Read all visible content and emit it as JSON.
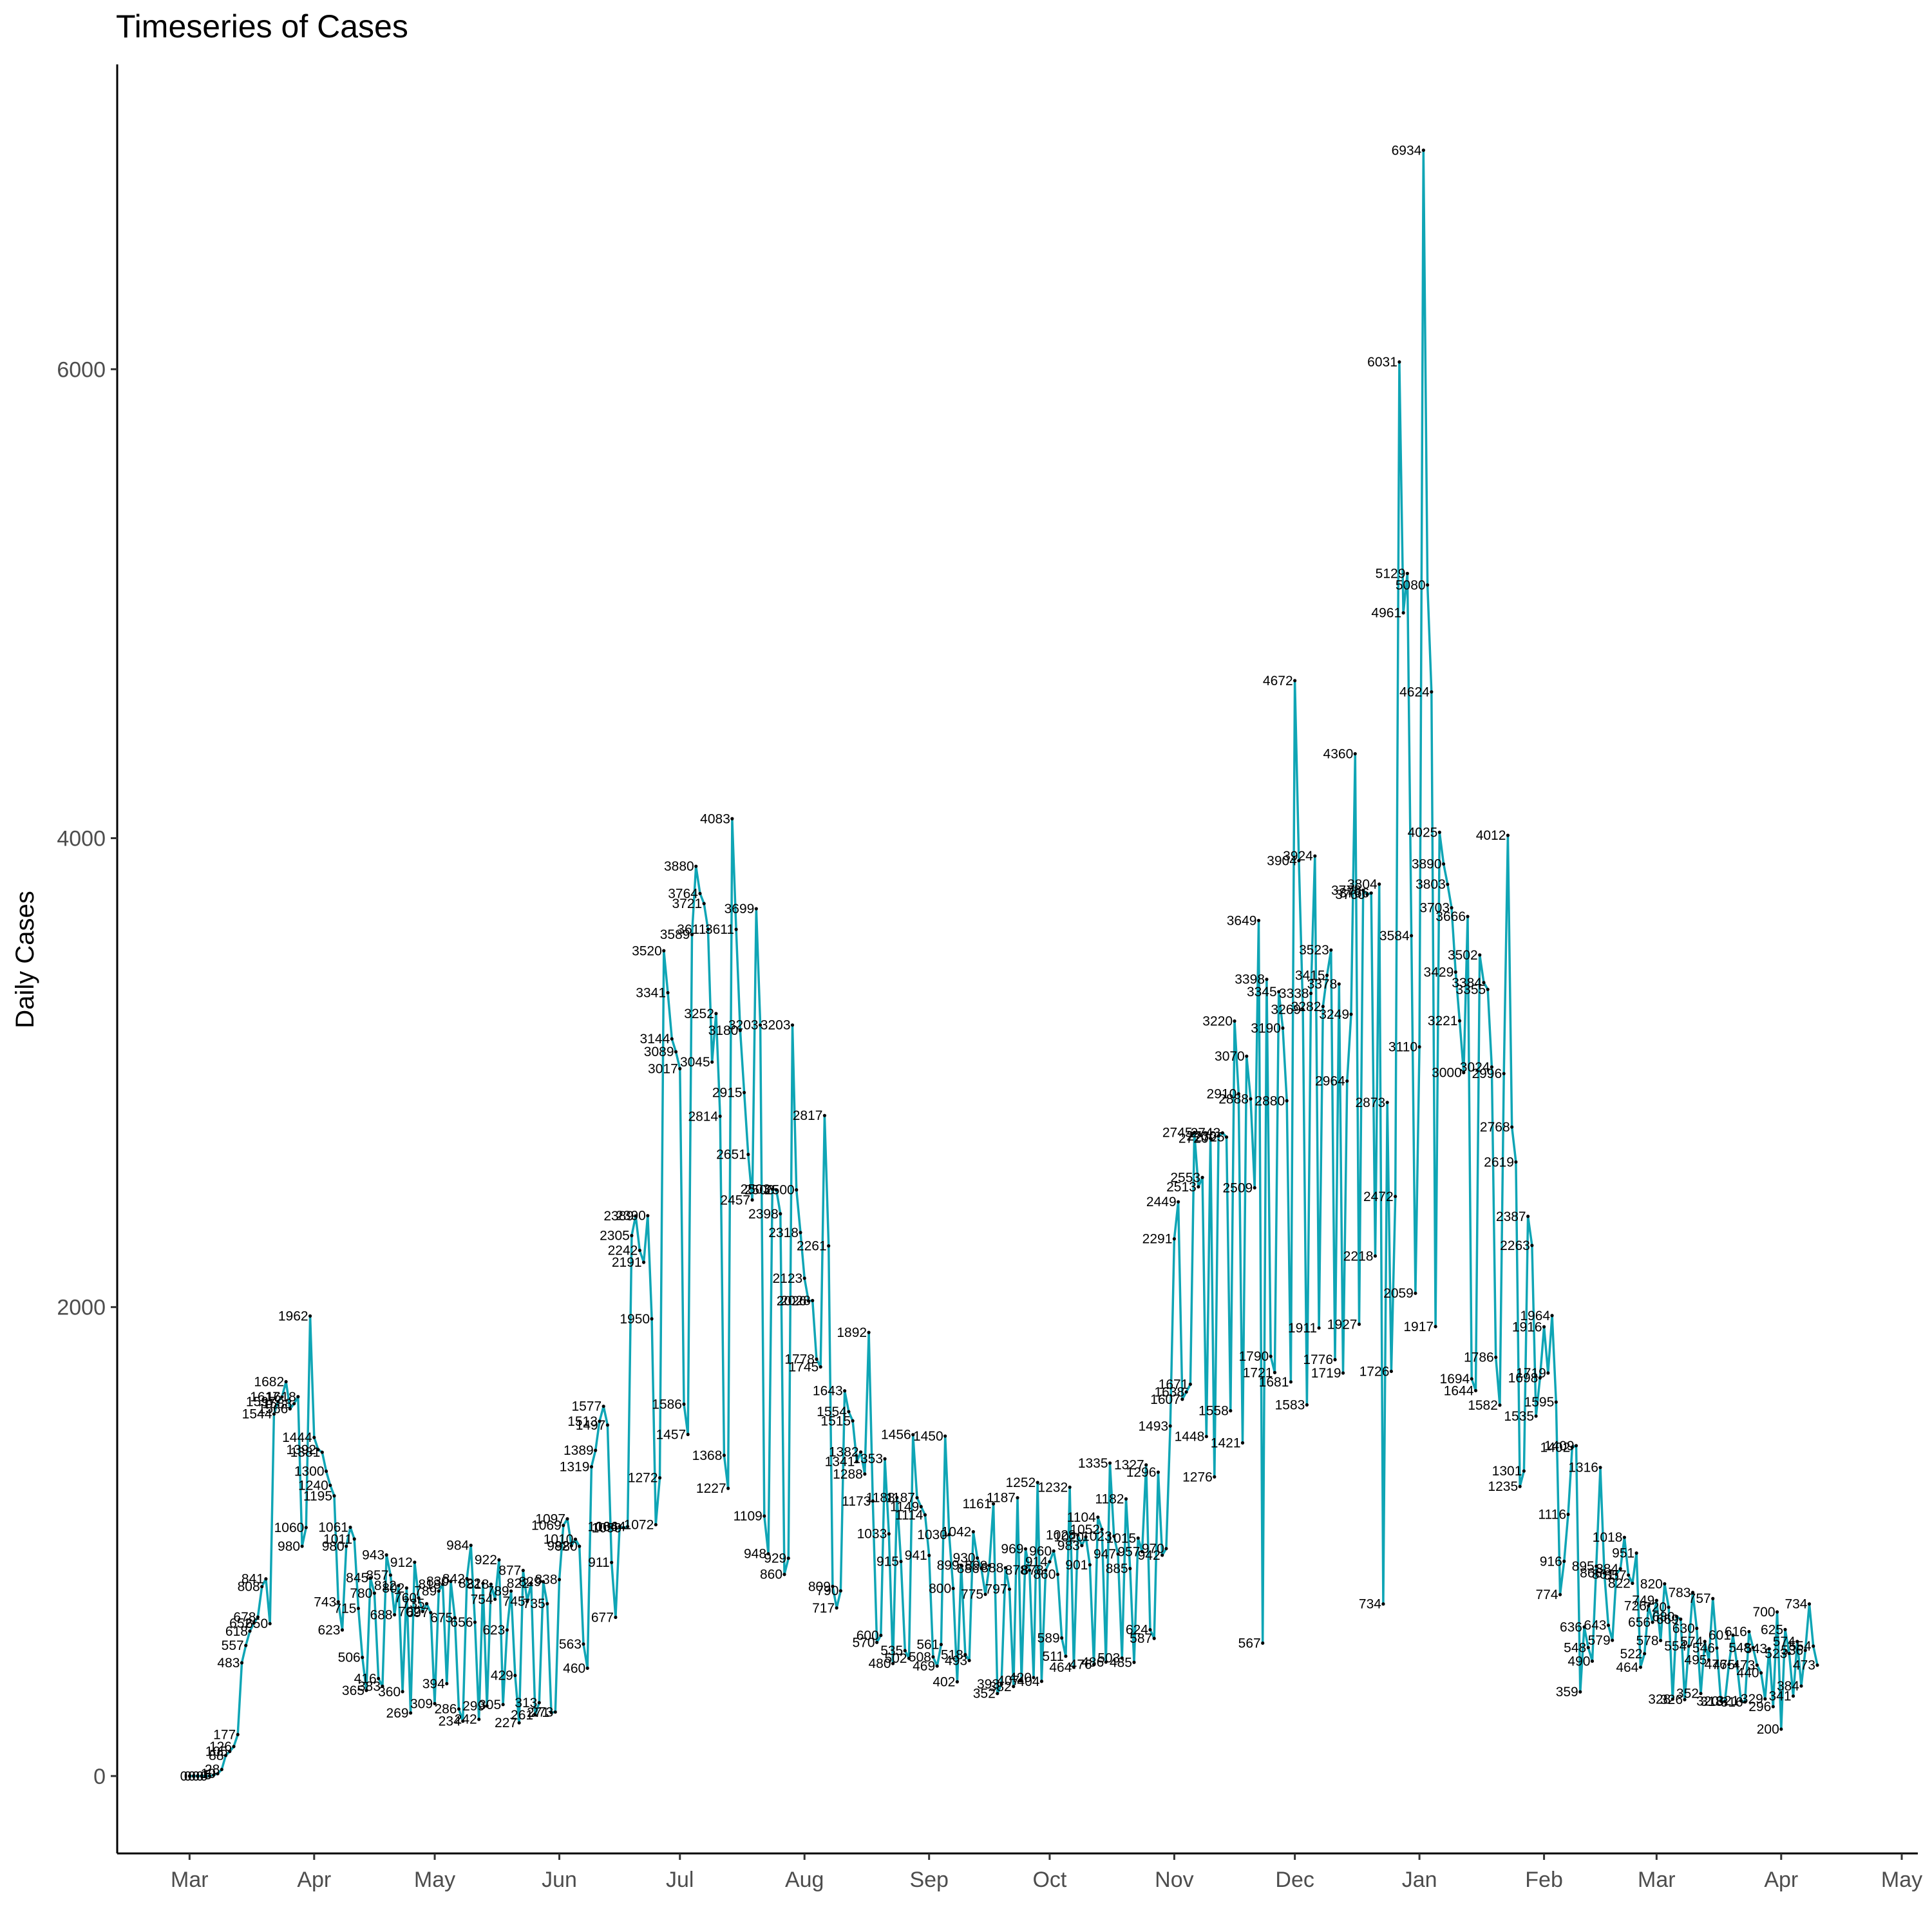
{
  "chart_data": {
    "type": "line",
    "title": "Timeseries of Cases",
    "xlabel": "",
    "ylabel": "Daily Cases",
    "color": "#0FA5B5",
    "label_color": "#000000",
    "y_ticks": [
      0,
      2000,
      4000,
      6000
    ],
    "ylim": [
      -330,
      7300
    ],
    "x_ticks": [
      "Mar",
      "Apr",
      "May",
      "Jun",
      "Jul",
      "Aug",
      "Sep",
      "Oct",
      "Nov",
      "Dec",
      "Jan",
      "Feb",
      "Mar",
      "Apr",
      "May"
    ],
    "x_tick_days": [
      0,
      31,
      61,
      92,
      122,
      153,
      184,
      214,
      245,
      275,
      306,
      337,
      365,
      396,
      426
    ],
    "xlim": [
      -18,
      430
    ],
    "points": [
      [
        0,
        0
      ],
      [
        1,
        0
      ],
      [
        2,
        0
      ],
      [
        3,
        0
      ],
      [
        4,
        0
      ],
      [
        5,
        0
      ],
      [
        6,
        5
      ],
      [
        7,
        10
      ],
      [
        8,
        28
      ],
      [
        9,
        88
      ],
      [
        10,
        105
      ],
      [
        11,
        126
      ],
      [
        12,
        177
      ],
      [
        13,
        483
      ],
      [
        14,
        557
      ],
      [
        15,
        618
      ],
      [
        16,
        652
      ],
      [
        17,
        678
      ],
      [
        18,
        808
      ],
      [
        19,
        841
      ],
      [
        20,
        650
      ],
      [
        21,
        1544
      ],
      [
        22,
        1597
      ],
      [
        23,
        1617
      ],
      [
        24,
        1682
      ],
      [
        25,
        1566
      ],
      [
        26,
        1588
      ],
      [
        27,
        1618
      ],
      [
        28,
        980
      ],
      [
        29,
        1060
      ],
      [
        30,
        1962
      ],
      [
        31,
        1444
      ],
      [
        32,
        1392
      ],
      [
        33,
        1381
      ],
      [
        34,
        1300
      ],
      [
        35,
        1240
      ],
      [
        36,
        1195
      ],
      [
        37,
        743
      ],
      [
        38,
        623
      ],
      [
        39,
        980
      ],
      [
        40,
        1061
      ],
      [
        41,
        1011
      ],
      [
        42,
        715
      ],
      [
        43,
        506
      ],
      [
        44,
        365
      ],
      [
        45,
        845
      ],
      [
        46,
        780
      ],
      [
        47,
        416
      ],
      [
        48,
        383
      ],
      [
        49,
        943
      ],
      [
        50,
        857
      ],
      [
        51,
        688
      ],
      [
        52,
        812
      ],
      [
        53,
        360
      ],
      [
        54,
        802
      ],
      [
        55,
        269
      ],
      [
        56,
        912
      ],
      [
        57,
        760
      ],
      [
        58,
        702
      ],
      [
        59,
        735
      ],
      [
        60,
        697
      ],
      [
        61,
        309
      ],
      [
        62,
        789
      ],
      [
        63,
        818
      ],
      [
        64,
        394
      ],
      [
        65,
        830
      ],
      [
        66,
        675
      ],
      [
        67,
        286
      ],
      [
        68,
        234
      ],
      [
        69,
        842
      ],
      [
        70,
        984
      ],
      [
        71,
        656
      ],
      [
        72,
        242
      ],
      [
        73,
        822
      ],
      [
        74,
        299
      ],
      [
        75,
        818
      ],
      [
        76,
        754
      ],
      [
        77,
        922
      ],
      [
        78,
        305
      ],
      [
        79,
        623
      ],
      [
        80,
        789
      ],
      [
        81,
        429
      ],
      [
        82,
        227
      ],
      [
        83,
        877
      ],
      [
        84,
        745
      ],
      [
        85,
        822
      ],
      [
        86,
        261
      ],
      [
        87,
        313
      ],
      [
        88,
        829
      ],
      [
        89,
        735
      ],
      [
        90,
        271
      ],
      [
        91,
        273
      ],
      [
        92,
        838
      ],
      [
        93,
        1069
      ],
      [
        94,
        1097
      ],
      [
        95,
        982
      ],
      [
        96,
        1010
      ],
      [
        97,
        980
      ],
      [
        98,
        563
      ],
      [
        99,
        460
      ],
      [
        100,
        1319
      ],
      [
        101,
        1389
      ],
      [
        102,
        1513
      ],
      [
        103,
        1577
      ],
      [
        104,
        1497
      ],
      [
        105,
        911
      ],
      [
        106,
        677
      ],
      [
        107,
        1064
      ],
      [
        108,
        1059
      ],
      [
        109,
        1064
      ],
      [
        110,
        2305
      ],
      [
        111,
        2389
      ],
      [
        112,
        2242
      ],
      [
        113,
        2191
      ],
      [
        114,
        2390
      ],
      [
        115,
        1950
      ],
      [
        116,
        1072
      ],
      [
        117,
        1272
      ],
      [
        118,
        3520
      ],
      [
        119,
        3341
      ],
      [
        120,
        3144
      ],
      [
        121,
        3089
      ],
      [
        122,
        3017
      ],
      [
        123,
        1586
      ],
      [
        124,
        1457
      ],
      [
        125,
        3589
      ],
      [
        126,
        3880
      ],
      [
        127,
        3764
      ],
      [
        128,
        3721
      ],
      [
        129,
        3611
      ],
      [
        130,
        3045
      ],
      [
        131,
        3252
      ],
      [
        132,
        2814
      ],
      [
        133,
        1368
      ],
      [
        134,
        1227
      ],
      [
        135,
        4083
      ],
      [
        136,
        3611
      ],
      [
        137,
        3180
      ],
      [
        138,
        2915
      ],
      [
        139,
        2651
      ],
      [
        140,
        2457
      ],
      [
        141,
        3699
      ],
      [
        142,
        3203
      ],
      [
        143,
        1109
      ],
      [
        144,
        948
      ],
      [
        145,
        2503
      ],
      [
        146,
        2500
      ],
      [
        147,
        2398
      ],
      [
        148,
        860
      ],
      [
        149,
        929
      ],
      [
        150,
        3203
      ],
      [
        151,
        2500
      ],
      [
        152,
        2318
      ],
      [
        153,
        2123
      ],
      [
        154,
        2026
      ],
      [
        155,
        2028
      ],
      [
        156,
        1778
      ],
      [
        157,
        1745
      ],
      [
        158,
        2817
      ],
      [
        159,
        2261
      ],
      [
        160,
        809
      ],
      [
        161,
        717
      ],
      [
        162,
        790
      ],
      [
        163,
        1643
      ],
      [
        164,
        1554
      ],
      [
        165,
        1515
      ],
      [
        166,
        1341
      ],
      [
        167,
        1382
      ],
      [
        168,
        1288
      ],
      [
        169,
        1892
      ],
      [
        170,
        1173
      ],
      [
        171,
        570
      ],
      [
        172,
        600
      ],
      [
        173,
        1353
      ],
      [
        174,
        1033
      ],
      [
        175,
        480
      ],
      [
        176,
        1188
      ],
      [
        177,
        915
      ],
      [
        178,
        535
      ],
      [
        179,
        502
      ],
      [
        180,
        1456
      ],
      [
        181,
        1187
      ],
      [
        182,
        1149
      ],
      [
        183,
        1114
      ],
      [
        184,
        941
      ],
      [
        185,
        508
      ],
      [
        186,
        469
      ],
      [
        187,
        561
      ],
      [
        188,
        1450
      ],
      [
        189,
        1030
      ],
      [
        190,
        800
      ],
      [
        191,
        402
      ],
      [
        192,
        899
      ],
      [
        193,
        518
      ],
      [
        194,
        493
      ],
      [
        195,
        1042
      ],
      [
        196,
        930
      ],
      [
        197,
        886
      ],
      [
        198,
        775
      ],
      [
        199,
        898
      ],
      [
        200,
        1161
      ],
      [
        201,
        352
      ],
      [
        202,
        393
      ],
      [
        203,
        888
      ],
      [
        204,
        797
      ],
      [
        205,
        382
      ],
      [
        206,
        1187
      ],
      [
        207,
        407
      ],
      [
        208,
        969
      ],
      [
        209,
        878
      ],
      [
        210,
        420
      ],
      [
        211,
        1252
      ],
      [
        212,
        404
      ],
      [
        213,
        878
      ],
      [
        214,
        914
      ],
      [
        215,
        960
      ],
      [
        216,
        860
      ],
      [
        217,
        589
      ],
      [
        218,
        511
      ],
      [
        219,
        1232
      ],
      [
        220,
        464
      ],
      [
        221,
        1028
      ],
      [
        222,
        983
      ],
      [
        223,
        1020
      ],
      [
        224,
        901
      ],
      [
        225,
        476
      ],
      [
        226,
        1104
      ],
      [
        227,
        1052
      ],
      [
        228,
        486
      ],
      [
        229,
        1335
      ],
      [
        230,
        1023
      ],
      [
        231,
        947
      ],
      [
        232,
        503
      ],
      [
        233,
        1182
      ],
      [
        234,
        885
      ],
      [
        235,
        485
      ],
      [
        236,
        1015
      ],
      [
        237,
        957
      ],
      [
        238,
        1327
      ],
      [
        239,
        624
      ],
      [
        240,
        587
      ],
      [
        241,
        1296
      ],
      [
        242,
        942
      ],
      [
        243,
        970
      ],
      [
        244,
        1493
      ],
      [
        245,
        2291
      ],
      [
        246,
        2449
      ],
      [
        247,
        1607
      ],
      [
        248,
        1638
      ],
      [
        249,
        1671
      ],
      [
        250,
        2745
      ],
      [
        251,
        2513
      ],
      [
        252,
        2553
      ],
      [
        253,
        1448
      ],
      [
        254,
        2720
      ],
      [
        255,
        1276
      ],
      [
        256,
        2730
      ],
      [
        257,
        2743
      ],
      [
        258,
        2725
      ],
      [
        259,
        1558
      ],
      [
        260,
        3220
      ],
      [
        261,
        2910
      ],
      [
        262,
        1421
      ],
      [
        263,
        3070
      ],
      [
        264,
        2888
      ],
      [
        265,
        2509
      ],
      [
        266,
        3649
      ],
      [
        267,
        567
      ],
      [
        268,
        3398
      ],
      [
        269,
        1790
      ],
      [
        270,
        1721
      ],
      [
        271,
        3345
      ],
      [
        272,
        3190
      ],
      [
        273,
        2880
      ],
      [
        274,
        1681
      ],
      [
        275,
        4672
      ],
      [
        276,
        3904
      ],
      [
        277,
        3269
      ],
      [
        278,
        1583
      ],
      [
        279,
        3338
      ],
      [
        280,
        3924
      ],
      [
        281,
        1911
      ],
      [
        282,
        3282
      ],
      [
        283,
        3415
      ],
      [
        284,
        3523
      ],
      [
        285,
        1776
      ],
      [
        286,
        3378
      ],
      [
        287,
        1719
      ],
      [
        288,
        2964
      ],
      [
        289,
        3249
      ],
      [
        290,
        4360
      ],
      [
        291,
        1927
      ],
      [
        292,
        3778
      ],
      [
        293,
        3760
      ],
      [
        294,
        3766
      ],
      [
        295,
        2218
      ],
      [
        296,
        3804
      ],
      [
        297,
        734
      ],
      [
        298,
        2873
      ],
      [
        299,
        1726
      ],
      [
        300,
        2472
      ],
      [
        301,
        6031
      ],
      [
        302,
        4961
      ],
      [
        303,
        5129
      ],
      [
        304,
        3584
      ],
      [
        305,
        2059
      ],
      [
        306,
        3110
      ],
      [
        307,
        6934
      ],
      [
        308,
        5080
      ],
      [
        309,
        4624
      ],
      [
        310,
        1917
      ],
      [
        311,
        4025
      ],
      [
        312,
        3890
      ],
      [
        313,
        3803
      ],
      [
        314,
        3703
      ],
      [
        315,
        3429
      ],
      [
        316,
        3221
      ],
      [
        317,
        3000
      ],
      [
        318,
        3666
      ],
      [
        319,
        1694
      ],
      [
        320,
        1644
      ],
      [
        321,
        3502
      ],
      [
        322,
        3384
      ],
      [
        323,
        3355
      ],
      [
        324,
        3024
      ],
      [
        325,
        1786
      ],
      [
        326,
        1582
      ],
      [
        327,
        2996
      ],
      [
        328,
        4012
      ],
      [
        329,
        2768
      ],
      [
        330,
        2619
      ],
      [
        331,
        1235
      ],
      [
        332,
        1301
      ],
      [
        333,
        2387
      ],
      [
        334,
        2263
      ],
      [
        335,
        1535
      ],
      [
        336,
        1698
      ],
      [
        337,
        1916
      ],
      [
        338,
        1719
      ],
      [
        339,
        1964
      ],
      [
        340,
        1595
      ],
      [
        341,
        774
      ],
      [
        342,
        916
      ],
      [
        343,
        1116
      ],
      [
        344,
        1402
      ],
      [
        345,
        1409
      ],
      [
        346,
        359
      ],
      [
        347,
        636
      ],
      [
        348,
        548
      ],
      [
        349,
        490
      ],
      [
        350,
        895
      ],
      [
        351,
        1316
      ],
      [
        352,
        866
      ],
      [
        353,
        643
      ],
      [
        354,
        579
      ],
      [
        355,
        861
      ],
      [
        356,
        884
      ],
      [
        357,
        1018
      ],
      [
        358,
        857
      ],
      [
        359,
        822
      ],
      [
        360,
        951
      ],
      [
        361,
        464
      ],
      [
        362,
        522
      ],
      [
        363,
        726
      ],
      [
        364,
        656
      ],
      [
        365,
        749
      ],
      [
        366,
        578
      ],
      [
        367,
        820
      ],
      [
        368,
        720
      ],
      [
        369,
        328
      ],
      [
        370,
        680
      ],
      [
        371,
        669
      ],
      [
        372,
        326
      ],
      [
        373,
        554
      ],
      [
        374,
        783
      ],
      [
        375,
        630
      ],
      [
        376,
        352
      ],
      [
        377,
        574
      ],
      [
        378,
        495
      ],
      [
        379,
        757
      ],
      [
        380,
        546
      ],
      [
        381,
        320
      ],
      [
        382,
        318
      ],
      [
        383,
        476
      ],
      [
        384,
        601
      ],
      [
        385,
        475
      ],
      [
        386,
        321
      ],
      [
        387,
        316
      ],
      [
        388,
        616
      ],
      [
        389,
        548
      ],
      [
        390,
        473
      ],
      [
        391,
        440
      ],
      [
        392,
        329
      ],
      [
        393,
        543
      ],
      [
        394,
        296
      ],
      [
        395,
        700
      ],
      [
        396,
        200
      ],
      [
        397,
        625
      ],
      [
        398,
        523
      ],
      [
        399,
        341
      ],
      [
        400,
        574
      ],
      [
        401,
        384
      ],
      [
        402,
        536
      ],
      [
        403,
        734
      ],
      [
        404,
        554
      ],
      [
        405,
        473
      ]
    ]
  }
}
